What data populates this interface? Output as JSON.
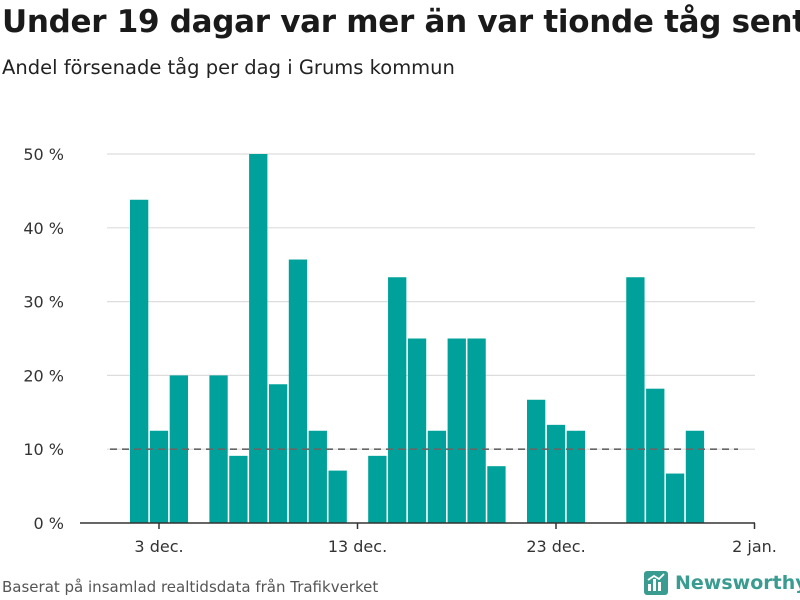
{
  "header": {
    "title": "Under 19 dagar var mer än var tionde tåg sent",
    "subtitle": "Andel försenade tåg per dag i Grums kommun"
  },
  "footer": {
    "source": "Baserat på insamlad realtidsdata från Trafikverket",
    "logo_text": "Newsworthy"
  },
  "colors": {
    "bar": "#00a19a",
    "logo": "#3a9c90",
    "reference_line": "#666666",
    "grid": "#dddddd"
  },
  "chart_data": {
    "type": "bar",
    "title": "Under 19 dagar var mer än var tionde tåg sent",
    "subtitle": "Andel försenade tåg per dag i Grums kommun",
    "xlabel": "",
    "ylabel": "",
    "ylim": [
      0,
      50
    ],
    "y_ticks": [
      0,
      10,
      20,
      30,
      40,
      50
    ],
    "y_tick_labels": [
      "0 %",
      "10 %",
      "20 %",
      "30 %",
      "40 %",
      "50 %"
    ],
    "x_ticks": [
      "2023-12-03",
      "2023-12-13",
      "2023-12-23",
      "2024-01-02"
    ],
    "x_tick_labels": [
      "3 dec.",
      "13 dec.",
      "23 dec.",
      "2 jan."
    ],
    "x_range": [
      "2023-11-30",
      "2024-01-02"
    ],
    "grid": true,
    "reference_line": 10,
    "x": [
      "2023-12-02",
      "2023-12-03",
      "2023-12-04",
      "2023-12-05",
      "2023-12-06",
      "2023-12-07",
      "2023-12-08",
      "2023-12-09",
      "2023-12-10",
      "2023-12-11",
      "2023-12-12",
      "2023-12-13",
      "2023-12-14",
      "2023-12-15",
      "2023-12-16",
      "2023-12-17",
      "2023-12-18",
      "2023-12-19",
      "2023-12-20",
      "2023-12-21",
      "2023-12-22",
      "2023-12-23",
      "2023-12-24",
      "2023-12-25",
      "2023-12-26",
      "2023-12-27",
      "2023-12-28",
      "2023-12-29",
      "2023-12-30",
      "2023-12-31"
    ],
    "values": [
      43.8,
      12.5,
      20.0,
      0,
      20.0,
      9.1,
      50.0,
      18.8,
      35.7,
      12.5,
      7.1,
      0,
      9.1,
      33.3,
      25.0,
      12.5,
      25.0,
      25.0,
      7.7,
      0,
      16.7,
      13.3,
      12.5,
      0,
      0,
      33.3,
      18.2,
      6.7,
      12.5,
      0
    ]
  }
}
